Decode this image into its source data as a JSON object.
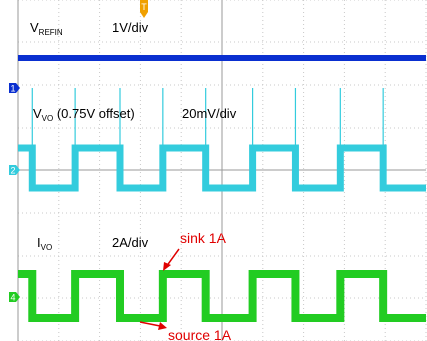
{
  "chart_data": {
    "type": "line",
    "grid": true,
    "time_divisions": 10,
    "series": [
      {
        "name": "REFIN",
        "color": "#0a2fd0",
        "marker": "1",
        "label_main": "V",
        "label_sub": "REFIN",
        "scale": "1V/div",
        "kind": "dc",
        "level_div": 0
      },
      {
        "name": "VO",
        "color": "#33ccdd",
        "marker": "2",
        "label_main": "V",
        "label_sub": "VO",
        "label_extra": " (0.75V offset)",
        "scale": "20mV/div",
        "kind": "square",
        "high_div": 0.7,
        "low_div": -0.7
      },
      {
        "name": "IVO",
        "color": "#22cc22",
        "marker": "4",
        "label_main": "I",
        "label_sub": "VO",
        "scale": "2A/div",
        "kind": "square",
        "high_div": 0.5,
        "low_div": -0.5
      }
    ],
    "square_edges_div": [
      0.35,
      1.4,
      2.5,
      3.55,
      4.6,
      5.75,
      6.8,
      7.9,
      8.95
    ],
    "starts_high": true,
    "annotations": [
      "sink 1A",
      "source 1A"
    ],
    "trigger_marker": "T"
  },
  "colors": {
    "marker1": "#0a2fd0",
    "marker2": "#33ccdd",
    "marker4": "#22cc22",
    "annotation": "#e00000",
    "trigger": "#f0a000"
  }
}
